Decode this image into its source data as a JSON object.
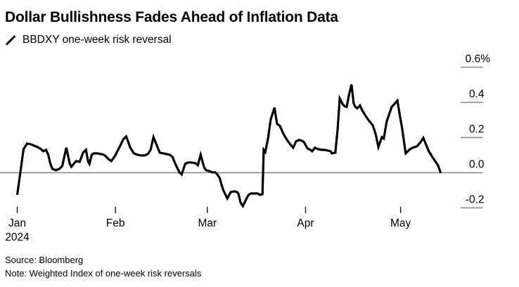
{
  "header": {
    "title": "Dollar Bullishness Fades Ahead of Inflation Data",
    "legend_label": "BBDXY one-week risk reversal"
  },
  "footer": {
    "source": "Source: Bloomberg",
    "note": "Note: Weighted Index of one-week risk reversals"
  },
  "colors": {
    "line": "#000000",
    "axis_gray": "#858585",
    "tick_dark": "#1a1a1a",
    "text": "#000000",
    "background": "#ffffff"
  },
  "chart_data": {
    "type": "line",
    "title": "Dollar Bullishness Fades Ahead of Inflation Data",
    "series": [
      {
        "name": "BBDXY one-week risk reversal",
        "color": "#000000"
      }
    ],
    "unit": "percent",
    "legend_position": "top-left",
    "grid": "zero-line-only",
    "x_axis": {
      "year": "2024",
      "tick_labels": [
        "Jan",
        "Feb",
        "Mar",
        "Apr",
        "May"
      ],
      "tick_day_offsets": [
        0,
        31,
        60,
        91,
        121
      ],
      "start_label": "Jan 2024",
      "end_day_offset": 134
    },
    "y_axis": {
      "side": "right",
      "tick_labels": [
        "0.6%",
        "0.4",
        "0.2",
        "0.0",
        "-0.2"
      ],
      "tick_values": [
        0.6,
        0.4,
        0.2,
        0.0,
        -0.2
      ],
      "range": [
        -0.28,
        0.7
      ],
      "zero_line": true
    },
    "points": [
      [
        0,
        -0.126
      ],
      [
        2,
        0.134
      ],
      [
        3.1,
        0.166
      ],
      [
        4.2,
        0.162
      ],
      [
        5.3,
        0.154
      ],
      [
        6.4,
        0.146
      ],
      [
        7.5,
        0.134
      ],
      [
        8.2,
        0.122
      ],
      [
        9.1,
        0.13
      ],
      [
        9.8,
        0.102
      ],
      [
        10.4,
        0.054
      ],
      [
        11.1,
        0.022
      ],
      [
        12.2,
        0.014
      ],
      [
        13.3,
        0.022
      ],
      [
        14.2,
        0.038
      ],
      [
        15.5,
        0.142
      ],
      [
        16.6,
        0.05
      ],
      [
        17.1,
        0.034
      ],
      [
        18,
        0.054
      ],
      [
        18.6,
        0.066
      ],
      [
        19.7,
        0.062
      ],
      [
        20.8,
        0.114
      ],
      [
        21.7,
        0.13
      ],
      [
        22.4,
        0.062
      ],
      [
        22.8,
        0.05
      ],
      [
        23.5,
        0.102
      ],
      [
        24.2,
        0.11
      ],
      [
        25.3,
        0.11
      ],
      [
        26.4,
        0.106
      ],
      [
        27.3,
        0.102
      ],
      [
        27.9,
        0.094
      ],
      [
        29,
        0.074
      ],
      [
        29.7,
        0.066
      ],
      [
        30.8,
        0.094
      ],
      [
        32.4,
        0.15
      ],
      [
        33.5,
        0.19
      ],
      [
        34.4,
        0.206
      ],
      [
        35.7,
        0.142
      ],
      [
        36.8,
        0.11
      ],
      [
        37.9,
        0.102
      ],
      [
        39,
        0.098
      ],
      [
        40.1,
        0.098
      ],
      [
        41.2,
        0.106
      ],
      [
        42.1,
        0.13
      ],
      [
        43,
        0.202
      ],
      [
        43.9,
        0.162
      ],
      [
        45,
        0.114
      ],
      [
        46.1,
        0.11
      ],
      [
        47.2,
        0.106
      ],
      [
        48.1,
        0.102
      ],
      [
        49,
        0.09
      ],
      [
        50.1,
        0.042
      ],
      [
        51.2,
        0.002
      ],
      [
        51.9,
        -0.01
      ],
      [
        53,
        0.05
      ],
      [
        53.9,
        0.058
      ],
      [
        55,
        0.058
      ],
      [
        56.3,
        0.054
      ],
      [
        57,
        0.042
      ],
      [
        57.9,
        0.102
      ],
      [
        59,
        0.03
      ],
      [
        59.6,
        0.014
      ],
      [
        60.5,
        0.01
      ],
      [
        61.6,
        0.002
      ],
      [
        62.5,
        0.002
      ],
      [
        63,
        -0.006
      ],
      [
        63.9,
        -0.03
      ],
      [
        64.5,
        -0.07
      ],
      [
        65.2,
        -0.106
      ],
      [
        66.3,
        -0.146
      ],
      [
        67.4,
        -0.11
      ],
      [
        68.5,
        -0.106
      ],
      [
        69.4,
        -0.11
      ],
      [
        69.8,
        -0.118
      ],
      [
        70.5,
        -0.17
      ],
      [
        71.2,
        -0.19
      ],
      [
        72.3,
        -0.15
      ],
      [
        73,
        -0.126
      ],
      [
        73.8,
        -0.118
      ],
      [
        74.9,
        -0.118
      ],
      [
        75.8,
        -0.118
      ],
      [
        76.7,
        -0.126
      ],
      [
        77.4,
        -0.122
      ],
      [
        77.8,
        0.13
      ],
      [
        78.3,
        0.118
      ],
      [
        79.2,
        0.198
      ],
      [
        80,
        0.302
      ],
      [
        81.2,
        0.37
      ],
      [
        82,
        0.278
      ],
      [
        82.9,
        0.266
      ],
      [
        84,
        0.222
      ],
      [
        84.9,
        0.194
      ],
      [
        85.8,
        0.17
      ],
      [
        86.5,
        0.154
      ],
      [
        87.1,
        0.142
      ],
      [
        88,
        0.178
      ],
      [
        88.9,
        0.186
      ],
      [
        89.8,
        0.182
      ],
      [
        90.5,
        0.174
      ],
      [
        91.6,
        0.138
      ],
      [
        92.5,
        0.13
      ],
      [
        93.1,
        0.122
      ],
      [
        94,
        0.142
      ],
      [
        94.9,
        0.134
      ],
      [
        96,
        0.13
      ],
      [
        96.9,
        0.13
      ],
      [
        98,
        0.126
      ],
      [
        98.9,
        0.122
      ],
      [
        99.3,
        0.11
      ],
      [
        100.4,
        0.114
      ],
      [
        101.1,
        0.242
      ],
      [
        101.8,
        0.422
      ],
      [
        102.7,
        0.39
      ],
      [
        103.3,
        0.378
      ],
      [
        104,
        0.374
      ],
      [
        104.7,
        0.442
      ],
      [
        105.5,
        0.502
      ],
      [
        106.2,
        0.394
      ],
      [
        106.7,
        0.374
      ],
      [
        107.3,
        0.366
      ],
      [
        108.2,
        0.382
      ],
      [
        108.9,
        0.354
      ],
      [
        110,
        0.322
      ],
      [
        111.1,
        0.294
      ],
      [
        112.2,
        0.27
      ],
      [
        113.1,
        0.222
      ],
      [
        114,
        0.146
      ],
      [
        115.1,
        0.202
      ],
      [
        115.7,
        0.194
      ],
      [
        116.6,
        0.29
      ],
      [
        118.2,
        0.374
      ],
      [
        120,
        0.41
      ],
      [
        120.8,
        0.322
      ],
      [
        121.5,
        0.25
      ],
      [
        122.2,
        0.162
      ],
      [
        122.6,
        0.11
      ],
      [
        123.7,
        0.13
      ],
      [
        124.8,
        0.142
      ],
      [
        126.2,
        0.15
      ],
      [
        127.3,
        0.174
      ],
      [
        128.2,
        0.198
      ],
      [
        129,
        0.162
      ],
      [
        129.9,
        0.122
      ],
      [
        131,
        0.09
      ],
      [
        131.9,
        0.066
      ],
      [
        132.8,
        0.042
      ],
      [
        133.7,
        -0.002
      ]
    ]
  }
}
